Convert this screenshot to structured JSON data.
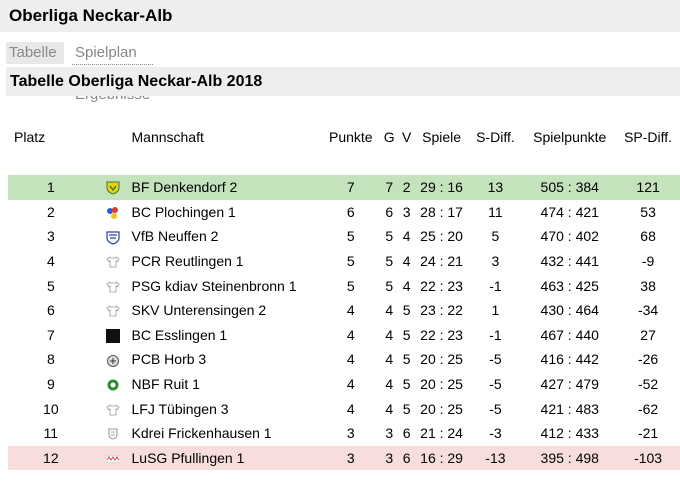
{
  "header": {
    "title": "Oberliga Neckar-Alb"
  },
  "tabs": [
    {
      "label": "Tabelle"
    },
    {
      "label": "Spielplan & Ergebnisse"
    }
  ],
  "section": {
    "title": "Tabelle Oberliga Neckar-Alb 2018"
  },
  "table": {
    "columns": [
      "Platz",
      "Mannschaft",
      "Punkte",
      "G",
      "V",
      "Spiele",
      "S-Diff.",
      "Spielpunkte",
      "SP-Diff."
    ],
    "rows": [
      {
        "platz": "1",
        "logo": "shield-yellow-green-icon",
        "team": "BF Denkendorf 2",
        "punkte": "7",
        "g": "7",
        "v": "2",
        "spiele": "29 : 16",
        "sdiff": "13",
        "spielpunkte": "505 : 384",
        "spdiff": "121"
      },
      {
        "platz": "2",
        "logo": "colored-dots-icon",
        "team": "BC Plochingen 1",
        "punkte": "6",
        "g": "6",
        "v": "3",
        "spiele": "28 : 17",
        "sdiff": "11",
        "spielpunkte": "474 : 421",
        "spdiff": "53"
      },
      {
        "platz": "3",
        "logo": "shield-blue-icon",
        "team": "VfB Neuffen 2",
        "punkte": "5",
        "g": "5",
        "v": "4",
        "spiele": "25 : 20",
        "sdiff": "5",
        "spielpunkte": "470 : 402",
        "spdiff": "68"
      },
      {
        "platz": "4",
        "logo": "jersey-icon",
        "team": "PCR Reutlingen 1",
        "punkte": "5",
        "g": "5",
        "v": "4",
        "spiele": "24 : 21",
        "sdiff": "3",
        "spielpunkte": "432 : 441",
        "spdiff": "-9"
      },
      {
        "platz": "5",
        "logo": "jersey-icon",
        "team": "PSG kdiav Steinenbronn 1",
        "punkte": "5",
        "g": "5",
        "v": "4",
        "spiele": "22 : 23",
        "sdiff": "-1",
        "spielpunkte": "463 : 425",
        "spdiff": "38"
      },
      {
        "platz": "6",
        "logo": "jersey-icon",
        "team": "SKV Unterensingen 2",
        "punkte": "4",
        "g": "4",
        "v": "5",
        "spiele": "23 : 22",
        "sdiff": "1",
        "spielpunkte": "430 : 464",
        "spdiff": "-34"
      },
      {
        "platz": "7",
        "logo": "black-square-icon",
        "team": "BC Esslingen 1",
        "punkte": "4",
        "g": "4",
        "v": "5",
        "spiele": "22 : 23",
        "sdiff": "-1",
        "spielpunkte": "467 : 440",
        "spdiff": "27"
      },
      {
        "platz": "8",
        "logo": "crest-gray-icon",
        "team": "PCB Horb 3",
        "punkte": "4",
        "g": "4",
        "v": "5",
        "spiele": "20 : 25",
        "sdiff": "-5",
        "spielpunkte": "416 : 442",
        "spdiff": "-26"
      },
      {
        "platz": "9",
        "logo": "crest-green-icon",
        "team": "NBF Ruit 1",
        "punkte": "4",
        "g": "4",
        "v": "5",
        "spiele": "20 : 25",
        "sdiff": "-5",
        "spielpunkte": "427 : 479",
        "spdiff": "-52"
      },
      {
        "platz": "10",
        "logo": "jersey-icon",
        "team": "LFJ Tübingen 3",
        "punkte": "4",
        "g": "4",
        "v": "5",
        "spiele": "20 : 25",
        "sdiff": "-5",
        "spielpunkte": "421 : 483",
        "spdiff": "-62"
      },
      {
        "platz": "11",
        "logo": "crest-small-icon",
        "team": "Kdrei Frickenhausen 1",
        "punkte": "3",
        "g": "3",
        "v": "6",
        "spiele": "21 : 24",
        "sdiff": "-3",
        "spielpunkte": "412 : 433",
        "spdiff": "-21"
      },
      {
        "platz": "12",
        "logo": "wordmark-icon",
        "team": "LuSG Pfullingen 1",
        "punkte": "3",
        "g": "3",
        "v": "6",
        "spiele": "16 : 29",
        "sdiff": "-13",
        "spielpunkte": "395 : 498",
        "spdiff": "-103"
      }
    ]
  },
  "colors": {
    "promote_row": "#c4e2bc",
    "relegate_row": "#f7dedd",
    "header_bar": "#eeeeee"
  }
}
